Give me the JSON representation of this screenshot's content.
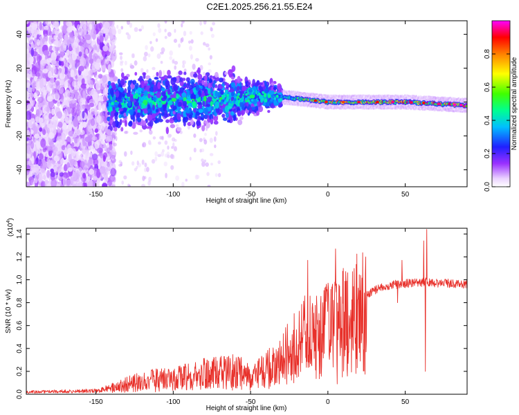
{
  "title": "C2E1.2025.256.21.55.E24",
  "spectrogram": {
    "type": "heatmap",
    "xlabel": "Height of straight line (km)",
    "ylabel": "Frequency (Hz)",
    "xlim": [
      -195,
      90
    ],
    "ylim": [
      -50,
      48
    ],
    "xticks": [
      -150,
      -100,
      -50,
      0,
      50
    ],
    "yticks": [
      -40,
      -20,
      0,
      20,
      40
    ],
    "colorbar_label": "Normalized spectral amplitude",
    "colorbar_ticks": [
      "0.0",
      "0.2",
      "0.4",
      "0.6",
      "0.8"
    ],
    "colorbar_tick_values": [
      0.0,
      0.2,
      0.4,
      0.6,
      0.8
    ],
    "colormap": [
      "#ffffff",
      "#e6c8ff",
      "#8a2be2",
      "#2020ff",
      "#00c8ff",
      "#00ff80",
      "#80ff00",
      "#ffff00",
      "#ff8000",
      "#ff0000",
      "#ff00ff"
    ]
  },
  "chart_data": [
    {
      "type": "heatmap",
      "title": "C2E1.2025.256.21.55.E24",
      "xlabel": "Height of straight line (km)",
      "ylabel": "Frequency (Hz)",
      "xlim": [
        -195,
        90
      ],
      "ylim": [
        -50,
        48
      ],
      "colorbar_label": "Normalized spectral amplitude",
      "clim": [
        0.0,
        1.0
      ],
      "ridge_frequency_hz": [
        {
          "x": -140,
          "f": 0
        },
        {
          "x": -100,
          "f": 1
        },
        {
          "x": -60,
          "f": 2
        },
        {
          "x": -40,
          "f": 4
        },
        {
          "x": -20,
          "f": 2
        },
        {
          "x": 0,
          "f": 0
        },
        {
          "x": 50,
          "f": 0
        },
        {
          "x": 90,
          "f": -2
        }
      ],
      "peak_amplitude": [
        {
          "x": -140,
          "amp": 0.3
        },
        {
          "x": -100,
          "amp": 0.4
        },
        {
          "x": -50,
          "amp": 0.45
        },
        {
          "x": -30,
          "amp": 0.55
        },
        {
          "x": 0,
          "amp": 0.85
        },
        {
          "x": 30,
          "amp": 0.9
        },
        {
          "x": 60,
          "amp": 0.95
        },
        {
          "x": 90,
          "amp": 1.0
        }
      ]
    },
    {
      "type": "line",
      "xlabel": "Height of straight line (km)",
      "ylabel": "SNR (10 * v/v)",
      "y_scale_label": "(x10",
      "y_scale_exp": "4",
      "y_scale_close": ")",
      "xlim": [
        -195,
        90
      ],
      "ylim": [
        0,
        1.45
      ],
      "xticks": [
        -150,
        -100,
        -50,
        0,
        50
      ],
      "yticks": [
        0.0,
        0.2,
        0.4,
        0.6,
        0.8,
        1.0,
        1.2,
        1.4
      ],
      "ytick_labels": [
        "0.0",
        "0.2",
        "0.4",
        "0.6",
        "0.8",
        "1.0",
        "1.2",
        "1.4"
      ],
      "color": "#e8302a",
      "envelope": [
        {
          "x": -195,
          "y": 0.02
        },
        {
          "x": -150,
          "y": 0.03
        },
        {
          "x": -135,
          "y": 0.07
        },
        {
          "x": -120,
          "y": 0.12
        },
        {
          "x": -100,
          "y": 0.14
        },
        {
          "x": -80,
          "y": 0.18
        },
        {
          "x": -60,
          "y": 0.2
        },
        {
          "x": -45,
          "y": 0.18
        },
        {
          "x": -35,
          "y": 0.25
        },
        {
          "x": -25,
          "y": 0.45
        },
        {
          "x": -15,
          "y": 0.55
        },
        {
          "x": -5,
          "y": 0.62
        },
        {
          "x": 5,
          "y": 0.7
        },
        {
          "x": 15,
          "y": 0.78
        },
        {
          "x": 25,
          "y": 0.88
        },
        {
          "x": 35,
          "y": 0.95
        },
        {
          "x": 45,
          "y": 0.97
        },
        {
          "x": 60,
          "y": 0.99
        },
        {
          "x": 75,
          "y": 0.98
        },
        {
          "x": 90,
          "y": 0.97
        }
      ],
      "spikes": [
        {
          "x": -15,
          "y": 0.86
        },
        {
          "x": -13,
          "y": 1.17
        },
        {
          "x": -5,
          "y": 0.18
        },
        {
          "x": 5,
          "y": 1.27
        },
        {
          "x": 6,
          "y": 0.09
        },
        {
          "x": 10,
          "y": 1.1
        },
        {
          "x": 45,
          "y": 0.8
        },
        {
          "x": 48,
          "y": 1.17
        },
        {
          "x": 62,
          "y": 1.34
        },
        {
          "x": 63,
          "y": 0.2
        },
        {
          "x": 64,
          "y": 1.44
        }
      ]
    }
  ]
}
